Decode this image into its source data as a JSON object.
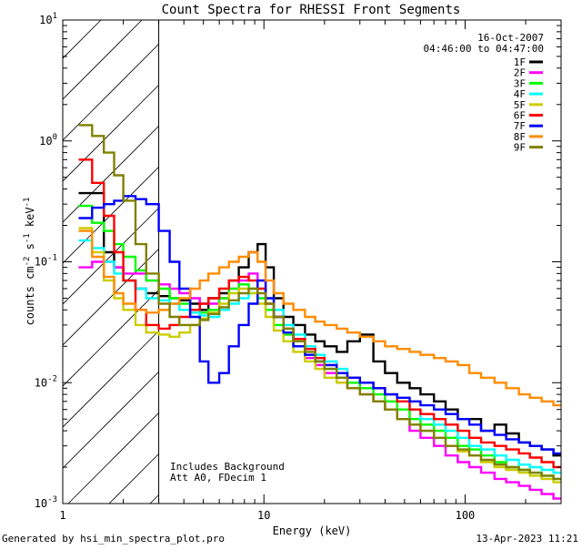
{
  "chart_data": {
    "type": "line",
    "title": "Count Spectra for RHESSI Front Segments",
    "xlabel": "Energy (keV)",
    "ylabel_base": "counts cm",
    "ylabel_exp1": "-2",
    "ylabel_mid": " s",
    "ylabel_exp2": "-1",
    "ylabel_mid2": " keV",
    "ylabel_exp3": "-1",
    "xscale": "log",
    "yscale": "log",
    "xlim": [
      1,
      300
    ],
    "ylim": [
      0.001,
      10
    ],
    "x_ticks": [
      {
        "value": 1,
        "label": "1"
      },
      {
        "value": 10,
        "label": "10"
      },
      {
        "value": 100,
        "label": "100"
      }
    ],
    "y_ticks": [
      {
        "value": 0.001,
        "base": "10",
        "exp": "-3"
      },
      {
        "value": 0.01,
        "base": "10",
        "exp": "-2"
      },
      {
        "value": 0.1,
        "base": "10",
        "exp": "-1"
      },
      {
        "value": 1,
        "base": "10",
        "exp": "0"
      },
      {
        "value": 10,
        "base": "10",
        "exp": "1"
      }
    ],
    "shaded_region_upper_keV": 3,
    "date_text": "16-Oct-2007",
    "time_range_text": "04:46:00 to 04:47:00",
    "annotation_line1": "Includes Background",
    "annotation_line2": "Att A0, FDecim 1",
    "footer_left": "Generated by hsi_min_spectra_plot.pro",
    "footer_right": "13-Apr-2023 11:21",
    "bin_edges": [
      1.2,
      1.4,
      1.6,
      1.8,
      2.0,
      2.3,
      2.6,
      3.0,
      3.4,
      3.8,
      4.3,
      4.8,
      5.3,
      6.0,
      6.7,
      7.5,
      8.4,
      9.3,
      10.2,
      11.2,
      12.5,
      14.0,
      16.0,
      18.0,
      20.0,
      23.0,
      26.0,
      30.0,
      35.0,
      40.0,
      46.0,
      53.0,
      60.0,
      70.0,
      80.0,
      92.0,
      105.0,
      120.0,
      140.0,
      160.0,
      185.0,
      210.0,
      240.0,
      275.0,
      300.0
    ],
    "series": [
      {
        "name": "1F",
        "color": "#000000",
        "values": [
          0.37,
          0.37,
          0.12,
          0.09,
          0.07,
          0.06,
          0.055,
          0.052,
          0.05,
          0.048,
          0.045,
          0.04,
          0.05,
          0.055,
          0.07,
          0.09,
          0.12,
          0.14,
          0.09,
          0.05,
          0.035,
          0.03,
          0.025,
          0.022,
          0.02,
          0.018,
          0.022,
          0.025,
          0.015,
          0.012,
          0.01,
          0.009,
          0.008,
          0.007,
          0.006,
          0.005,
          0.005,
          0.004,
          0.0045,
          0.0038,
          0.0032,
          0.003,
          0.0028,
          0.0025
        ]
      },
      {
        "name": "2F",
        "color": "#ff00ff",
        "values": [
          0.09,
          0.1,
          0.1,
          0.09,
          0.08,
          0.08,
          0.07,
          0.065,
          0.06,
          0.055,
          0.05,
          0.045,
          0.045,
          0.05,
          0.06,
          0.07,
          0.08,
          0.07,
          0.05,
          0.035,
          0.025,
          0.02,
          0.016,
          0.014,
          0.012,
          0.01,
          0.009,
          0.008,
          0.007,
          0.006,
          0.005,
          0.004,
          0.0035,
          0.003,
          0.0025,
          0.0022,
          0.002,
          0.0018,
          0.0016,
          0.0015,
          0.0014,
          0.0013,
          0.0012,
          0.0011
        ]
      },
      {
        "name": "3F",
        "color": "#00ff00",
        "values": [
          0.29,
          0.21,
          0.18,
          0.14,
          0.11,
          0.085,
          0.07,
          0.06,
          0.05,
          0.045,
          0.04,
          0.038,
          0.04,
          0.05,
          0.06,
          0.065,
          0.06,
          0.05,
          0.04,
          0.03,
          0.025,
          0.02,
          0.017,
          0.015,
          0.013,
          0.011,
          0.01,
          0.009,
          0.008,
          0.007,
          0.006,
          0.005,
          0.0045,
          0.004,
          0.0035,
          0.003,
          0.0028,
          0.0025,
          0.0022,
          0.002,
          0.0019,
          0.0018,
          0.0017,
          0.0016
        ]
      },
      {
        "name": "4F",
        "color": "#00ffff",
        "values": [
          0.15,
          0.13,
          0.1,
          0.08,
          0.07,
          0.06,
          0.05,
          0.048,
          0.045,
          0.04,
          0.038,
          0.036,
          0.035,
          0.04,
          0.045,
          0.05,
          0.055,
          0.06,
          0.05,
          0.04,
          0.03,
          0.025,
          0.02,
          0.017,
          0.015,
          0.013,
          0.011,
          0.01,
          0.009,
          0.008,
          0.007,
          0.006,
          0.005,
          0.0045,
          0.004,
          0.0035,
          0.003,
          0.0028,
          0.0025,
          0.0023,
          0.0021,
          0.002,
          0.0019,
          0.0018
        ]
      },
      {
        "name": "5F",
        "color": "#cccc00",
        "values": [
          0.19,
          0.12,
          0.07,
          0.05,
          0.04,
          0.03,
          0.026,
          0.025,
          0.024,
          0.026,
          0.03,
          0.034,
          0.038,
          0.045,
          0.055,
          0.06,
          0.055,
          0.045,
          0.035,
          0.027,
          0.022,
          0.018,
          0.015,
          0.013,
          0.011,
          0.01,
          0.009,
          0.008,
          0.007,
          0.006,
          0.005,
          0.0045,
          0.004,
          0.0035,
          0.003,
          0.0027,
          0.0025,
          0.0022,
          0.002,
          0.0019,
          0.0018,
          0.0017,
          0.0016,
          0.0015
        ]
      },
      {
        "name": "6F",
        "color": "#ff0000",
        "values": [
          0.7,
          0.45,
          0.24,
          0.12,
          0.07,
          0.04,
          0.03,
          0.028,
          0.03,
          0.035,
          0.04,
          0.045,
          0.05,
          0.06,
          0.07,
          0.075,
          0.07,
          0.06,
          0.045,
          0.035,
          0.028,
          0.023,
          0.019,
          0.016,
          0.014,
          0.012,
          0.011,
          0.01,
          0.009,
          0.008,
          0.007,
          0.006,
          0.0055,
          0.005,
          0.0045,
          0.004,
          0.0035,
          0.0032,
          0.003,
          0.0028,
          0.0026,
          0.0024,
          0.0022,
          0.002
        ]
      },
      {
        "name": "7F",
        "color": "#0000ff",
        "values": [
          0.23,
          0.28,
          0.3,
          0.32,
          0.35,
          0.33,
          0.3,
          0.18,
          0.1,
          0.06,
          0.035,
          0.015,
          0.01,
          0.012,
          0.02,
          0.03,
          0.045,
          0.07,
          0.05,
          0.035,
          0.026,
          0.02,
          0.017,
          0.015,
          0.014,
          0.012,
          0.011,
          0.01,
          0.009,
          0.008,
          0.0075,
          0.007,
          0.0065,
          0.006,
          0.0055,
          0.005,
          0.0045,
          0.004,
          0.0037,
          0.0034,
          0.0032,
          0.003,
          0.0028,
          0.0026
        ]
      },
      {
        "name": "8F",
        "color": "#ff8c00",
        "values": [
          0.18,
          0.11,
          0.075,
          0.055,
          0.045,
          0.04,
          0.038,
          0.04,
          0.045,
          0.05,
          0.06,
          0.07,
          0.08,
          0.09,
          0.1,
          0.11,
          0.12,
          0.1,
          0.07,
          0.055,
          0.045,
          0.04,
          0.035,
          0.032,
          0.03,
          0.028,
          0.026,
          0.024,
          0.022,
          0.02,
          0.019,
          0.018,
          0.017,
          0.016,
          0.015,
          0.014,
          0.012,
          0.011,
          0.01,
          0.009,
          0.008,
          0.0075,
          0.007,
          0.0065
        ]
      },
      {
        "name": "9F",
        "color": "#808000",
        "values": [
          1.35,
          1.1,
          0.8,
          0.52,
          0.32,
          0.14,
          0.08,
          0.045,
          0.035,
          0.03,
          0.03,
          0.033,
          0.037,
          0.042,
          0.048,
          0.055,
          0.06,
          0.055,
          0.045,
          0.035,
          0.028,
          0.022,
          0.018,
          0.015,
          0.013,
          0.011,
          0.009,
          0.008,
          0.007,
          0.006,
          0.005,
          0.0045,
          0.004,
          0.0035,
          0.003,
          0.0028,
          0.0025,
          0.0023,
          0.0021,
          0.002,
          0.0019,
          0.0018,
          0.0017,
          0.0016
        ]
      }
    ]
  }
}
